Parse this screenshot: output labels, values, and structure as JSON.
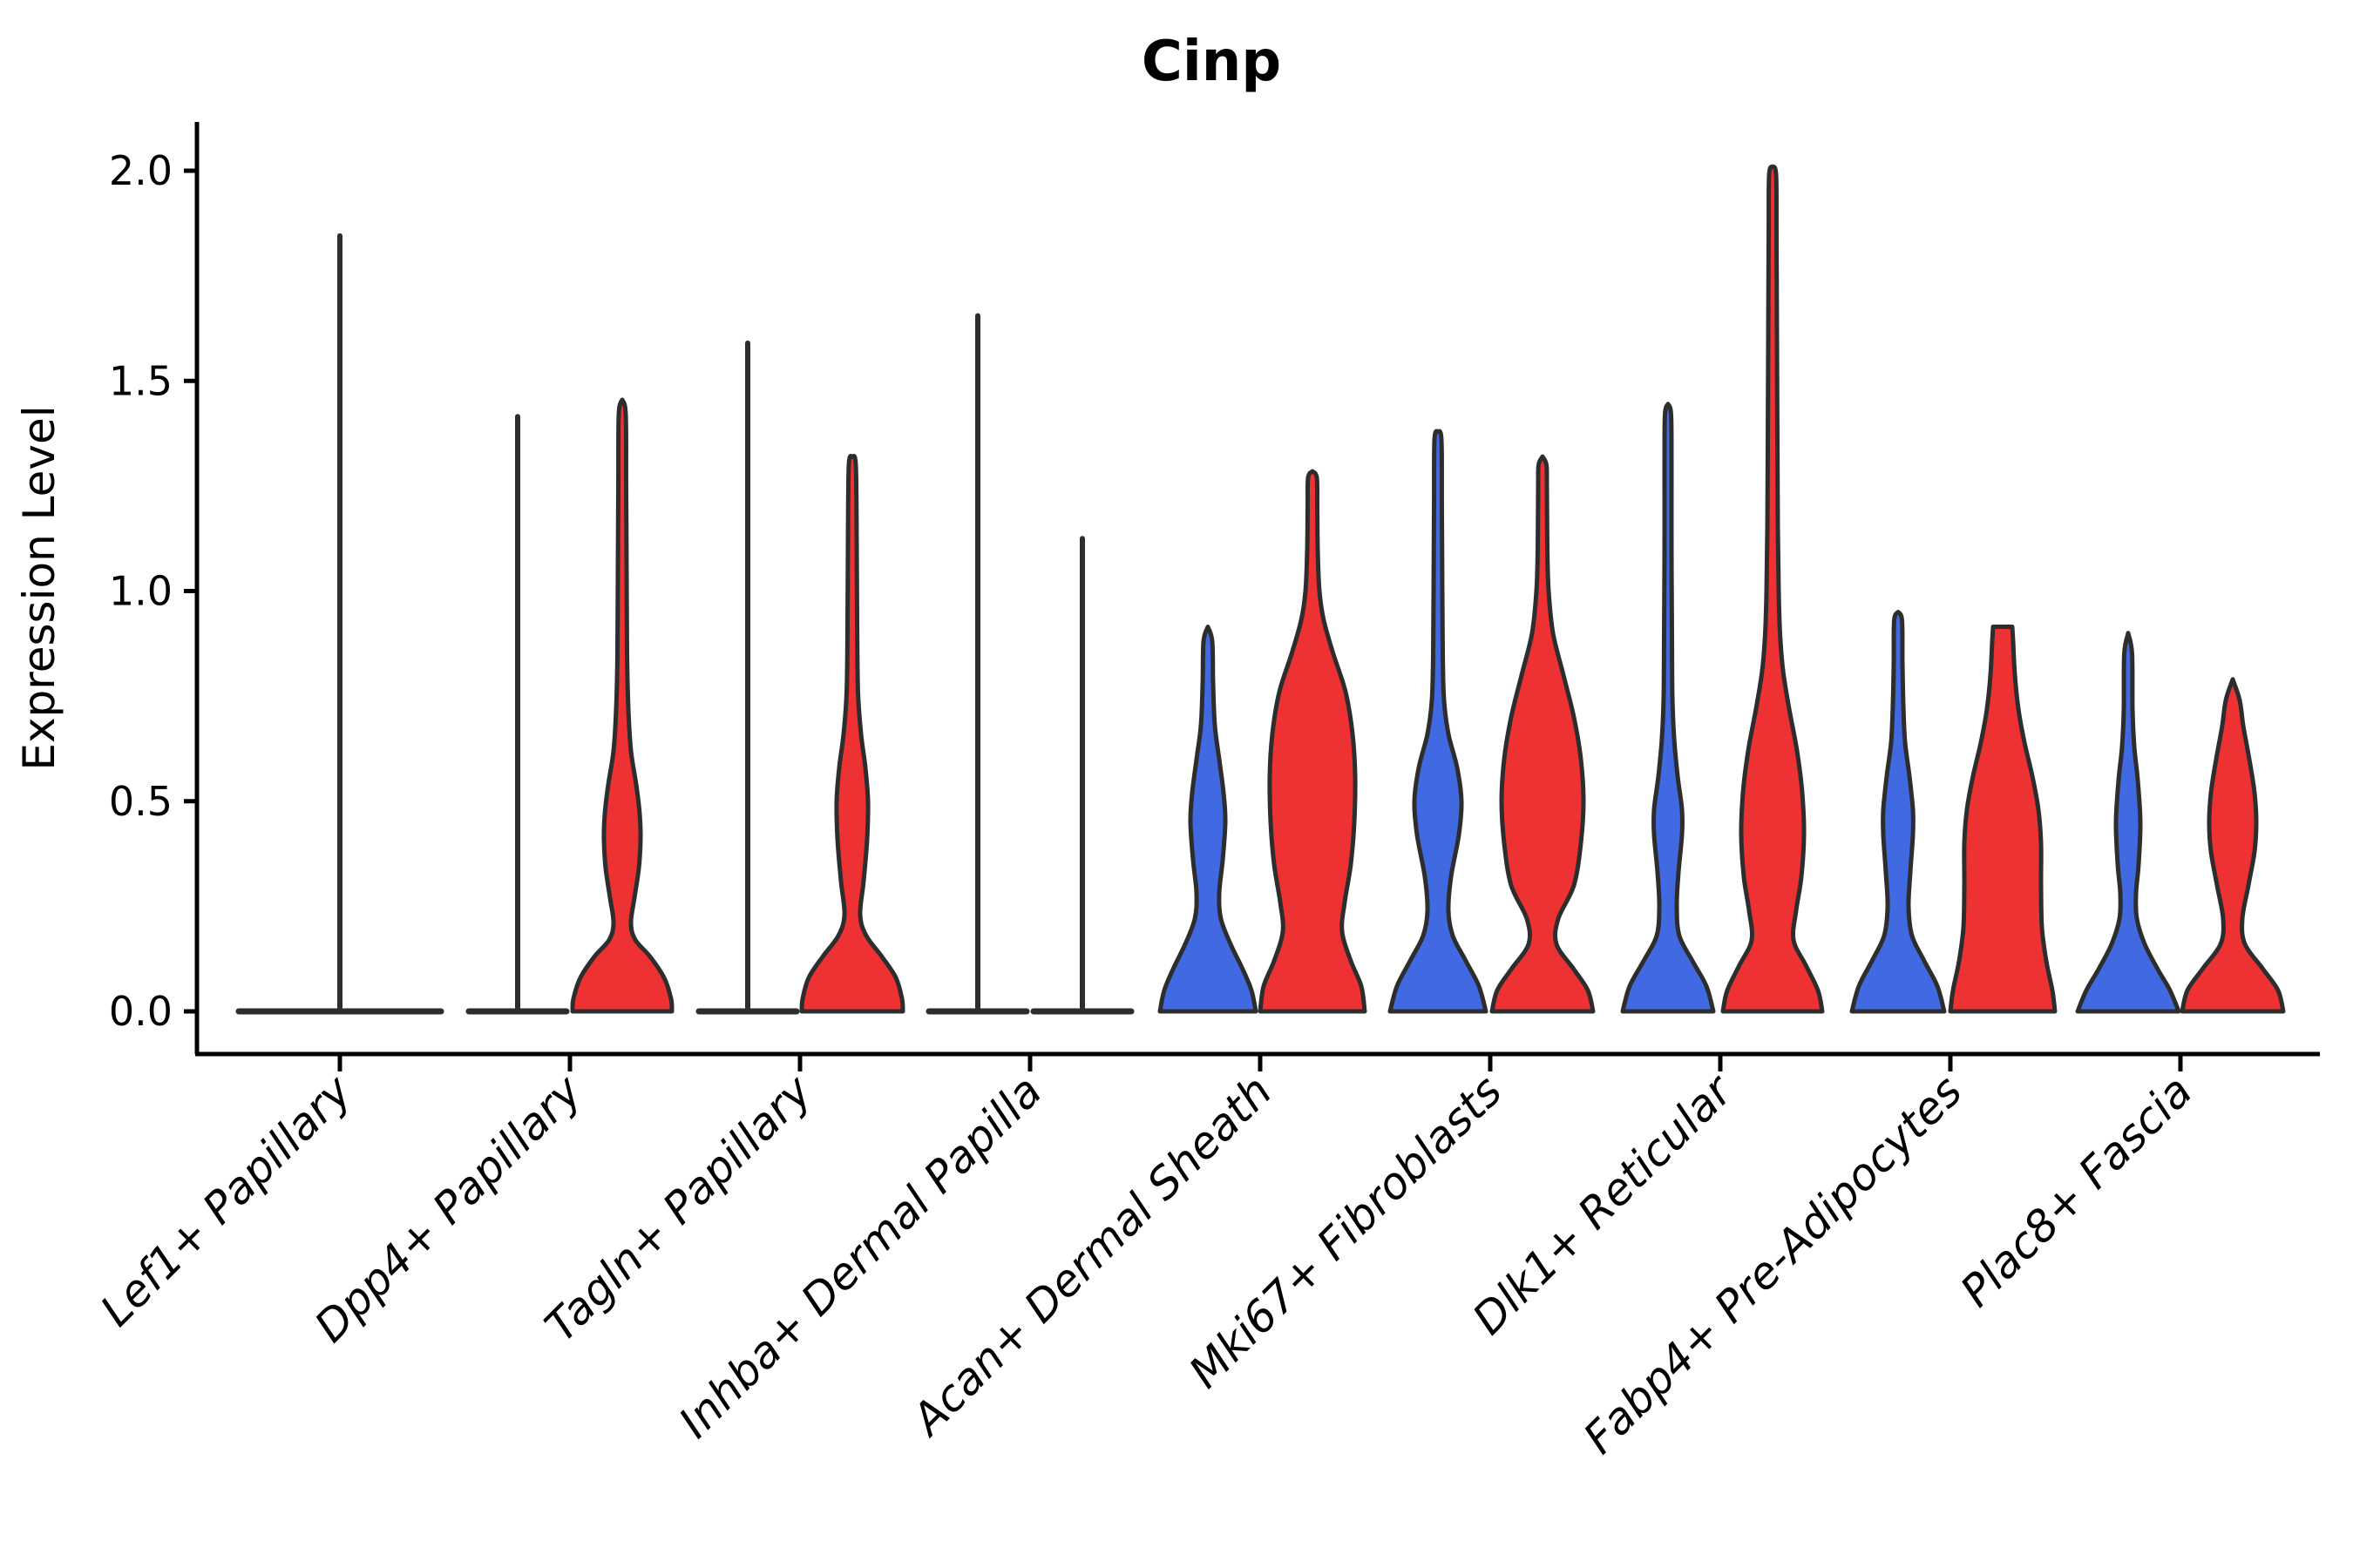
{
  "title": "Cinp",
  "y_axis": {
    "label": "Expression Level",
    "tick_labels": [
      "0.0",
      "0.5",
      "1.0",
      "1.5",
      "2.0"
    ]
  },
  "x_axis": {
    "tick_labels": [
      "Lef1+ Papillary",
      "Dpp4+ Papillary",
      "Tagln+ Papillary",
      "Inhba+ Dermal Papilla",
      "Acan+ Dermal Sheath",
      "Mki67+ Fibroblasts",
      "Dlk1+ Reticular",
      "Fabp4+ Pre-Adipocytes",
      "Plac8+ Fascia"
    ]
  },
  "colors": {
    "blue": "#4169E1",
    "red": "#EE3233",
    "outline": "#2d2d2d",
    "axis": "#000000"
  },
  "chart_data": {
    "type": "violin",
    "title": "Cinp",
    "ylabel": "Expression Level",
    "ylim": [
      0,
      2.12
    ],
    "yticks": [
      0.0,
      0.5,
      1.0,
      1.5,
      2.0
    ],
    "grid": false,
    "legend": "none",
    "categories": [
      "Lef1+ Papillary",
      "Dpp4+ Papillary",
      "Tagln+ Papillary",
      "Inhba+ Dermal Papilla",
      "Acan+ Dermal Sheath",
      "Mki67+ Fibroblasts",
      "Dlk1+ Reticular",
      "Fabp4+ Pre-Adipocytes",
      "Plac8+ Fascia"
    ],
    "violins": [
      {
        "category": "Lef1+ Papillary",
        "items": [
          {
            "group": "single",
            "color": "none",
            "kind": "line",
            "max": 1.845
          }
        ]
      },
      {
        "category": "Dpp4+ Papillary",
        "items": [
          {
            "group": "left",
            "color": "blue",
            "kind": "line",
            "max": 1.415
          },
          {
            "group": "right",
            "color": "red",
            "kind": "violin",
            "max": 1.455,
            "profile": [
              [
                0,
                57
              ],
              [
                0.03,
                56
              ],
              [
                0.08,
                48
              ],
              [
                0.13,
                32
              ],
              [
                0.17,
                15
              ],
              [
                0.21,
                10
              ],
              [
                0.27,
                14
              ],
              [
                0.34,
                19
              ],
              [
                0.41,
                21
              ],
              [
                0.47,
                20
              ],
              [
                0.54,
                16
              ],
              [
                0.62,
                10
              ],
              [
                0.72,
                7
              ],
              [
                0.85,
                5.5
              ],
              [
                1.05,
                5
              ],
              [
                1.25,
                4.5
              ],
              [
                1.42,
                4
              ],
              [
                1.455,
                0
              ]
            ]
          }
        ]
      },
      {
        "category": "Tagln+ Papillary",
        "items": [
          {
            "group": "left",
            "color": "blue",
            "kind": "line",
            "max": 1.59
          },
          {
            "group": "right",
            "color": "red",
            "kind": "violin",
            "max": 1.32,
            "profile": [
              [
                0,
                58
              ],
              [
                0.03,
                57
              ],
              [
                0.08,
                50
              ],
              [
                0.13,
                34
              ],
              [
                0.18,
                16
              ],
              [
                0.23,
                9
              ],
              [
                0.31,
                13
              ],
              [
                0.41,
                17
              ],
              [
                0.5,
                18
              ],
              [
                0.58,
                15
              ],
              [
                0.66,
                10
              ],
              [
                0.76,
                6.5
              ],
              [
                0.92,
                5.5
              ],
              [
                1.12,
                5
              ],
              [
                1.3,
                4
              ],
              [
                1.32,
                0
              ]
            ]
          }
        ]
      },
      {
        "category": "Inhba+ Dermal Papilla",
        "items": [
          {
            "group": "left",
            "color": "blue",
            "kind": "line",
            "max": 1.655
          },
          {
            "group": "right",
            "color": "red",
            "kind": "line",
            "max": 1.125
          }
        ]
      },
      {
        "category": "Acan+ Dermal Sheath",
        "items": [
          {
            "group": "left",
            "color": "blue",
            "kind": "violin",
            "max": 0.915,
            "profile": [
              [
                0,
                55
              ],
              [
                0.05,
                50
              ],
              [
                0.1,
                40
              ],
              [
                0.16,
                26
              ],
              [
                0.22,
                15
              ],
              [
                0.28,
                13
              ],
              [
                0.36,
                17
              ],
              [
                0.45,
                20
              ],
              [
                0.52,
                18
              ],
              [
                0.6,
                13
              ],
              [
                0.68,
                8
              ],
              [
                0.78,
                6
              ],
              [
                0.88,
                5
              ],
              [
                0.915,
                0
              ]
            ]
          },
          {
            "group": "right",
            "color": "red",
            "kind": "violin",
            "max": 1.285,
            "profile": [
              [
                0,
                60
              ],
              [
                0.06,
                56
              ],
              [
                0.12,
                44
              ],
              [
                0.19,
                34
              ],
              [
                0.26,
                37
              ],
              [
                0.35,
                44
              ],
              [
                0.45,
                48
              ],
              [
                0.56,
                49
              ],
              [
                0.66,
                46
              ],
              [
                0.76,
                38
              ],
              [
                0.85,
                24
              ],
              [
                0.93,
                13
              ],
              [
                1.0,
                8
              ],
              [
                1.1,
                6
              ],
              [
                1.2,
                5.5
              ],
              [
                1.27,
                5
              ],
              [
                1.285,
                0
              ]
            ]
          }
        ]
      },
      {
        "category": "Mki67+ Fibroblasts",
        "items": [
          {
            "group": "left",
            "color": "blue",
            "kind": "violin",
            "max": 1.38,
            "profile": [
              [
                0,
                55
              ],
              [
                0.06,
                47
              ],
              [
                0.12,
                32
              ],
              [
                0.18,
                17
              ],
              [
                0.24,
                12
              ],
              [
                0.32,
                15
              ],
              [
                0.42,
                24
              ],
              [
                0.5,
                27
              ],
              [
                0.58,
                22
              ],
              [
                0.66,
                12
              ],
              [
                0.74,
                7
              ],
              [
                0.85,
                5.5
              ],
              [
                1.0,
                5
              ],
              [
                1.2,
                4.5
              ],
              [
                1.36,
                4
              ],
              [
                1.38,
                0
              ]
            ]
          },
          {
            "group": "right",
            "color": "red",
            "kind": "violin",
            "max": 1.32,
            "profile": [
              [
                0,
                58
              ],
              [
                0.05,
                52
              ],
              [
                0.1,
                36
              ],
              [
                0.16,
                16
              ],
              [
                0.22,
                18
              ],
              [
                0.3,
                36
              ],
              [
                0.4,
                44
              ],
              [
                0.5,
                47
              ],
              [
                0.6,
                44
              ],
              [
                0.7,
                36
              ],
              [
                0.8,
                24
              ],
              [
                0.9,
                12
              ],
              [
                1.0,
                7
              ],
              [
                1.1,
                5.5
              ],
              [
                1.25,
                5
              ],
              [
                1.3,
                4.5
              ],
              [
                1.32,
                0
              ]
            ]
          }
        ]
      },
      {
        "category": "Dlk1+ Reticular",
        "items": [
          {
            "group": "left",
            "color": "blue",
            "kind": "violin",
            "max": 1.445,
            "profile": [
              [
                0,
                52
              ],
              [
                0.06,
                44
              ],
              [
                0.12,
                28
              ],
              [
                0.18,
                13
              ],
              [
                0.25,
                10
              ],
              [
                0.33,
                12
              ],
              [
                0.42,
                16
              ],
              [
                0.48,
                16
              ],
              [
                0.56,
                11
              ],
              [
                0.65,
                7
              ],
              [
                0.75,
                5
              ],
              [
                0.9,
                4.5
              ],
              [
                1.1,
                4
              ],
              [
                1.3,
                4
              ],
              [
                1.42,
                3.5
              ],
              [
                1.445,
                0
              ]
            ]
          },
          {
            "group": "right",
            "color": "red",
            "kind": "violin",
            "max": 2.01,
            "profile": [
              [
                0,
                57
              ],
              [
                0.05,
                52
              ],
              [
                0.11,
                38
              ],
              [
                0.17,
                24
              ],
              [
                0.24,
                27
              ],
              [
                0.32,
                33
              ],
              [
                0.42,
                36
              ],
              [
                0.52,
                34
              ],
              [
                0.62,
                28
              ],
              [
                0.72,
                19
              ],
              [
                0.81,
                12
              ],
              [
                0.9,
                8.5
              ],
              [
                1.0,
                7
              ],
              [
                1.15,
                6
              ],
              [
                1.35,
                5.5
              ],
              [
                1.6,
                5
              ],
              [
                1.85,
                4.5
              ],
              [
                1.99,
                4
              ],
              [
                2.01,
                0
              ]
            ]
          }
        ]
      },
      {
        "category": "Fabp4+ Pre-Adipocytes",
        "items": [
          {
            "group": "left",
            "color": "blue",
            "kind": "violin",
            "max": 0.95,
            "profile": [
              [
                0,
                53
              ],
              [
                0.06,
                45
              ],
              [
                0.12,
                30
              ],
              [
                0.18,
                16
              ],
              [
                0.25,
                12
              ],
              [
                0.33,
                14
              ],
              [
                0.42,
                17
              ],
              [
                0.48,
                17
              ],
              [
                0.56,
                13
              ],
              [
                0.64,
                8
              ],
              [
                0.73,
                6
              ],
              [
                0.83,
                5
              ],
              [
                0.93,
                4.5
              ],
              [
                0.95,
                0
              ]
            ]
          },
          {
            "group": "right",
            "color": "red",
            "kind": "violin",
            "max": 0.915,
            "flat_top": true,
            "profile": [
              [
                0,
                60
              ],
              [
                0.05,
                57
              ],
              [
                0.12,
                50
              ],
              [
                0.2,
                45
              ],
              [
                0.3,
                44
              ],
              [
                0.4,
                44
              ],
              [
                0.48,
                41
              ],
              [
                0.56,
                34
              ],
              [
                0.64,
                25
              ],
              [
                0.72,
                18
              ],
              [
                0.8,
                14
              ],
              [
                0.88,
                12
              ],
              [
                0.915,
                11
              ]
            ]
          }
        ]
      },
      {
        "category": "Plac8+ Fascia",
        "items": [
          {
            "group": "left",
            "color": "blue",
            "kind": "violin",
            "max": 0.9,
            "profile": [
              [
                0,
                58
              ],
              [
                0.05,
                48
              ],
              [
                0.1,
                34
              ],
              [
                0.16,
                19
              ],
              [
                0.22,
                10
              ],
              [
                0.28,
                9
              ],
              [
                0.35,
                12
              ],
              [
                0.45,
                14
              ],
              [
                0.55,
                11
              ],
              [
                0.63,
                7
              ],
              [
                0.72,
                5
              ],
              [
                0.85,
                4.5
              ],
              [
                0.9,
                0
              ]
            ]
          },
          {
            "group": "right",
            "color": "red",
            "kind": "violin",
            "max": 0.79,
            "profile": [
              [
                0,
                58
              ],
              [
                0.05,
                52
              ],
              [
                0.1,
                35
              ],
              [
                0.16,
                14
              ],
              [
                0.22,
                11
              ],
              [
                0.3,
                18
              ],
              [
                0.38,
                25
              ],
              [
                0.45,
                27
              ],
              [
                0.52,
                25
              ],
              [
                0.6,
                19
              ],
              [
                0.68,
                12
              ],
              [
                0.74,
                8
              ],
              [
                0.79,
                0
              ]
            ]
          }
        ]
      }
    ]
  }
}
